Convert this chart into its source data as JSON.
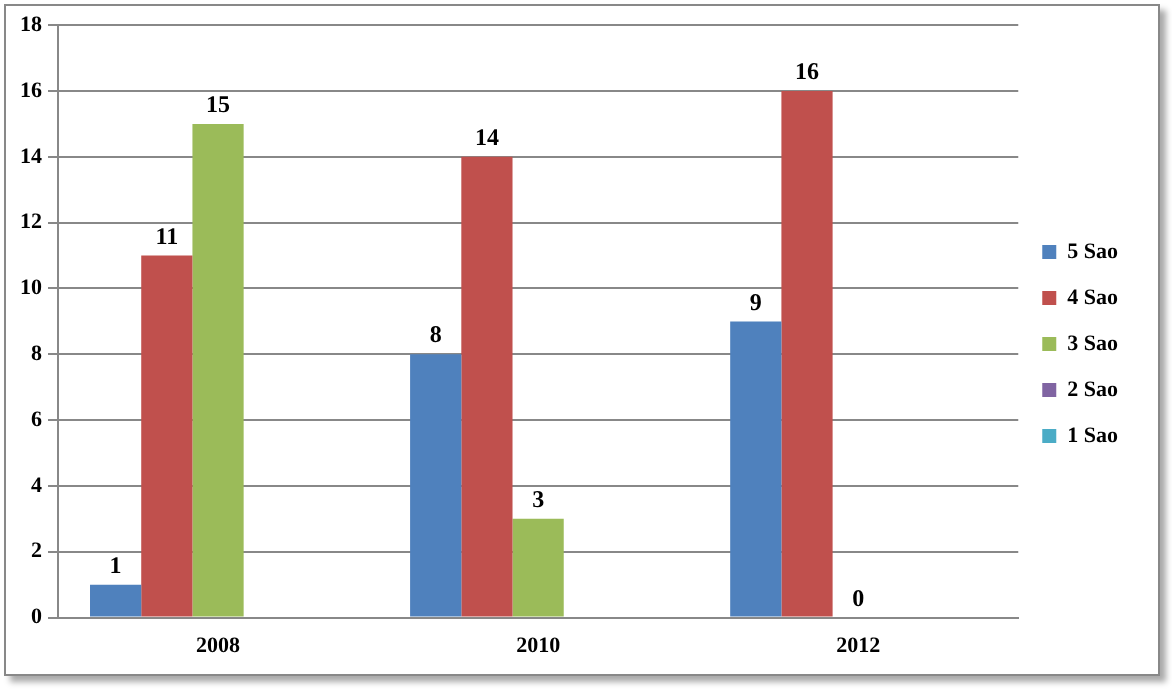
{
  "chart_data": {
    "type": "bar",
    "categories": [
      "2008",
      "2010",
      "2012"
    ],
    "series": [
      {
        "name": "5 Sao",
        "color": "#4f81bd",
        "values": [
          1,
          8,
          9
        ]
      },
      {
        "name": "4 Sao",
        "color": "#c0504d",
        "values": [
          11,
          14,
          16
        ]
      },
      {
        "name": "3 Sao",
        "color": "#9bbb59",
        "values": [
          15,
          3,
          0
        ]
      },
      {
        "name": "2 Sao",
        "color": "#8064a2",
        "values": [
          null,
          null,
          null
        ]
      },
      {
        "name": "1 Sao",
        "color": "#4bacc6",
        "values": [
          null,
          null,
          null
        ]
      }
    ],
    "ylim": [
      0,
      18
    ],
    "yticks": [
      0,
      2,
      4,
      6,
      8,
      10,
      12,
      14,
      16,
      18
    ],
    "grid": "y",
    "legend": "right",
    "data_labels": true
  }
}
